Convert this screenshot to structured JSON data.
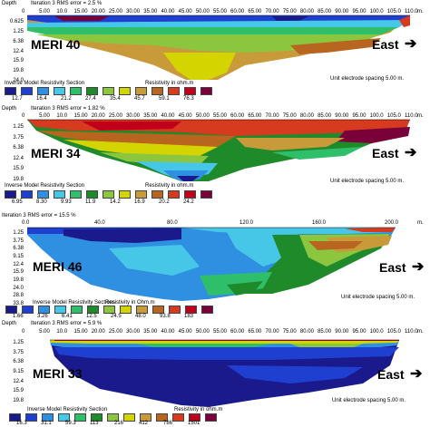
{
  "panels": [
    {
      "name": "MERI 40",
      "depth_label": "Depth",
      "iteration": "Iteration 3 RMS error = 2.5 %",
      "x_ticks": [
        "0",
        "5.00",
        "10.0",
        "15.00",
        "20.00",
        "25.00",
        "30.00",
        "35.00",
        "40.00",
        "45.00",
        "50.00",
        "55.00",
        "60.00",
        "65.00",
        "70.00",
        "75.00",
        "80.00",
        "85.00",
        "90.00",
        "95.00",
        "100.0",
        "105.0",
        "110.0"
      ],
      "x_unit": "m.",
      "depths": [
        "0.625",
        "1.25",
        "6.38",
        "12.4",
        "15.9",
        "19.8",
        "24.0"
      ],
      "direction": "East",
      "spacing": "Unit electrode spacing 5.00 m.",
      "section_title": "Inverse Model Resistivity Section",
      "res_label": "Resistivity in ohm.m",
      "legend_values": [
        "12.7",
        "16.4",
        "21.2",
        "27.4",
        "35.4",
        "45.7",
        "59.1",
        "76.3"
      ]
    },
    {
      "name": "MERI 34",
      "depth_label": "Depth",
      "iteration": "Iteration 3 RMS error = 1.82 %",
      "x_ticks": [
        "0",
        "5.00",
        "10.0",
        "15.00",
        "20.00",
        "25.00",
        "30.00",
        "35.00",
        "40.00",
        "45.00",
        "50.00",
        "55.00",
        "60.00",
        "65.00",
        "70.00",
        "75.00",
        "80.00",
        "85.00",
        "90.00",
        "95.00",
        "100.0",
        "105.0",
        "110.0"
      ],
      "x_unit": "m.",
      "depths": [
        "1.25",
        "3.75",
        "6.38",
        "12.4",
        "15.9",
        "19.8"
      ],
      "direction": "East",
      "spacing": "Unit electrode spacing 5.00 m.",
      "section_title": "Inverse Model Resistivity Section",
      "res_label": "Resistivity in ohm.m",
      "legend_values": [
        "6.95",
        "8.30",
        "9.93",
        "11.9",
        "14.2",
        "16.9",
        "20.2",
        "24.2"
      ]
    },
    {
      "name": "MERI 46",
      "depth_label": "",
      "iteration": "Iteration 3 RMS error = 15.5 %",
      "x_ticks": [
        "0.0",
        "40.0",
        "80.0",
        "120.0",
        "160.0",
        "200.0"
      ],
      "x_unit": "m.",
      "depths": [
        "1.25",
        "3.75",
        "6.38",
        "9.15",
        "12.4",
        "15.9",
        "19.8",
        "24.0",
        "28.8",
        "33.8"
      ],
      "direction": "East",
      "spacing": "Unit electrode spacing 5.00 m.",
      "section_title": "Inverse Model Resistivity Sections",
      "res_label": "Resistivity in Ohm.m",
      "legend_values": [
        "1.66",
        "3.26",
        "6.41",
        "12.5",
        "24.5",
        "48.0",
        "93.8",
        "183"
      ]
    },
    {
      "name": "MERI 33",
      "depth_label": "Depth",
      "iteration": "Iteration 3 RMS error = 5.9 %",
      "x_ticks": [
        "0",
        "5.00",
        "10.0",
        "15.00",
        "20.00",
        "25.00",
        "30.00",
        "35.00",
        "40.00",
        "45.00",
        "50.00",
        "55.00",
        "60.00",
        "65.00",
        "70.00",
        "75.00",
        "80.00",
        "85.00",
        "90.00",
        "95.00",
        "100.0",
        "105.0",
        "110.0"
      ],
      "x_unit": "m.",
      "depths": [
        "1.25",
        "3.75",
        "6.38",
        "9.15",
        "12.4",
        "15.9",
        "19.8"
      ],
      "direction": "East",
      "spacing": "Unit electrode spacing 5.00 m.",
      "section_title": "Inverse Model Resistivity Section",
      "res_label": "Resistivity in ohm.m",
      "legend_values": [
        "16.3",
        "31.1",
        "59.3",
        "113",
        "216",
        "412",
        "786",
        "1501"
      ]
    }
  ],
  "colors": {
    "scale": [
      "#1a1a8c",
      "#1f3fd0",
      "#2f8fe0",
      "#46c7e8",
      "#2fbf6a",
      "#1e8a2a",
      "#8cc63f",
      "#d4d400",
      "#c89a3a",
      "#b8651f",
      "#d63a1f",
      "#c0001a",
      "#7a003a"
    ]
  }
}
